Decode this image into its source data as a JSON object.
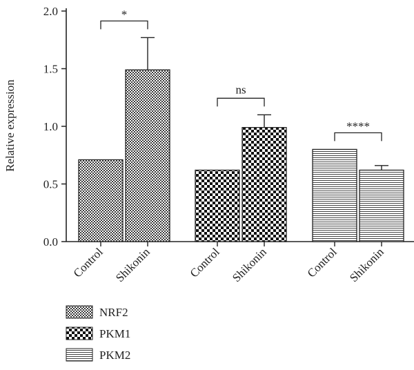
{
  "chart_data": {
    "type": "bar",
    "title": "",
    "xlabel": "",
    "ylabel": "Relative expression",
    "ylim": [
      0,
      2.0
    ],
    "yticks": [
      "0.0",
      "0.5",
      "1.0",
      "1.5",
      "2.0"
    ],
    "grid": false,
    "legend_position": "bottom-left",
    "groups": [
      {
        "name": "NRF2",
        "pattern": "checker-fine",
        "bars": [
          {
            "label": "Control",
            "value": 0.71,
            "error": 0
          },
          {
            "label": "Shikonin",
            "value": 1.49,
            "error": 0.28
          }
        ],
        "significance": "*"
      },
      {
        "name": "PKM1",
        "pattern": "checker-coarse",
        "bars": [
          {
            "label": "Control",
            "value": 0.62,
            "error": 0
          },
          {
            "label": "Shikonin",
            "value": 0.99,
            "error": 0.11
          }
        ],
        "significance": "ns"
      },
      {
        "name": "PKM2",
        "pattern": "horizontal-lines",
        "bars": [
          {
            "label": "Control",
            "value": 0.8,
            "error": 0
          },
          {
            "label": "Shikonin",
            "value": 0.62,
            "error": 0.04
          }
        ],
        "significance": "****"
      }
    ],
    "legend": [
      "NRF2",
      "PKM1",
      "PKM2"
    ]
  },
  "colors": {
    "axis": "#222222",
    "pattern_dark": "#3a3a3a",
    "pattern_light": "#ffffff"
  }
}
